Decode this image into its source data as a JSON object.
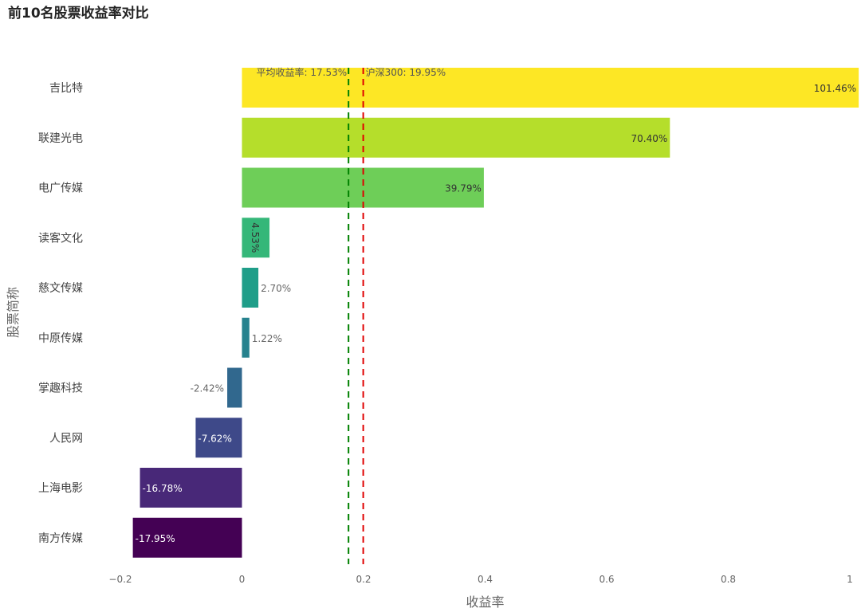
{
  "chart_data": {
    "type": "bar",
    "orientation": "horizontal",
    "title": "前10名股票收益率对比",
    "xlabel": "收益率",
    "ylabel": "股票简称",
    "xlim": [
      -0.2,
      1.0
    ],
    "x_ticks": [
      -0.2,
      0,
      0.2,
      0.4,
      0.6,
      0.8,
      1.0
    ],
    "x_tick_labels": [
      "−0.2",
      "0",
      "0.2",
      "0.4",
      "0.6",
      "0.8",
      "1"
    ],
    "grid": false,
    "categories": [
      "吉比特",
      "联建光电",
      "电广传媒",
      "读客文化",
      "慈文传媒",
      "中原传媒",
      "掌趣科技",
      "人民网",
      "上海电影",
      "南方传媒"
    ],
    "values": [
      1.0146,
      0.704,
      0.3979,
      0.0453,
      0.027,
      0.0122,
      -0.0242,
      -0.0762,
      -0.1678,
      -0.1795
    ],
    "value_labels": [
      "101.46%",
      "70.40%",
      "39.79%",
      "4.53%",
      "2.70%",
      "1.22%",
      "-2.42%",
      "-7.62%",
      "-16.78%",
      "-17.95%"
    ],
    "bar_colors": [
      "#fde725",
      "#b5de2b",
      "#6ece58",
      "#35b779",
      "#1f9e89",
      "#26828e",
      "#31688e",
      "#3e4989",
      "#482878",
      "#440154"
    ],
    "reference_lines": [
      {
        "name": "平均收益率",
        "value": 0.1753,
        "label": "平均收益率: 17.53%",
        "color": "#008000"
      },
      {
        "name": "沪深300",
        "value": 0.1995,
        "label": "沪深300: 19.95%",
        "color": "#e00000"
      }
    ]
  }
}
